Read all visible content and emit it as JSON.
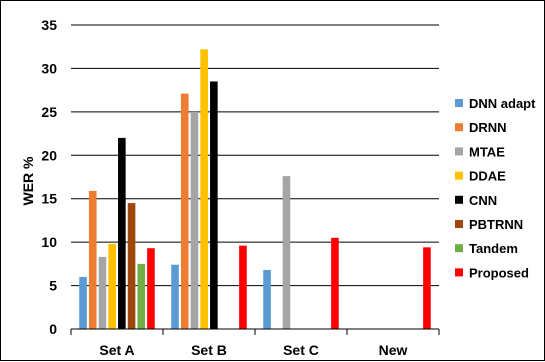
{
  "chart_data": {
    "type": "bar",
    "title": "",
    "xlabel": "",
    "ylabel": "WER %",
    "ylim": [
      0,
      35
    ],
    "yticks": [
      0,
      5,
      10,
      15,
      20,
      25,
      30,
      35
    ],
    "grid": "horizontal",
    "legend_position": "right",
    "categories": [
      "Set A",
      "Set B",
      "Set C",
      "New"
    ],
    "series": [
      {
        "name": "DNN adapt",
        "color": "#5B9BD5",
        "values": [
          6.0,
          7.4,
          6.8,
          null
        ]
      },
      {
        "name": "DRNN",
        "color": "#ED7D31",
        "values": [
          15.9,
          27.1,
          null,
          null
        ]
      },
      {
        "name": "MTAE",
        "color": "#A5A5A5",
        "values": [
          8.3,
          25.0,
          17.6,
          null
        ]
      },
      {
        "name": "DDAE",
        "color": "#FFC000",
        "values": [
          9.8,
          32.2,
          null,
          null
        ]
      },
      {
        "name": "CNN",
        "color": "#000000",
        "values": [
          22.0,
          28.5,
          null,
          null
        ]
      },
      {
        "name": "PBTRNN",
        "color": "#9E480E",
        "values": [
          14.5,
          null,
          null,
          null
        ]
      },
      {
        "name": "Tandem",
        "color": "#70AD47",
        "values": [
          7.5,
          null,
          null,
          null
        ]
      },
      {
        "name": "Proposed",
        "color": "#FF0000",
        "values": [
          9.3,
          9.6,
          10.5,
          9.4
        ]
      }
    ]
  }
}
